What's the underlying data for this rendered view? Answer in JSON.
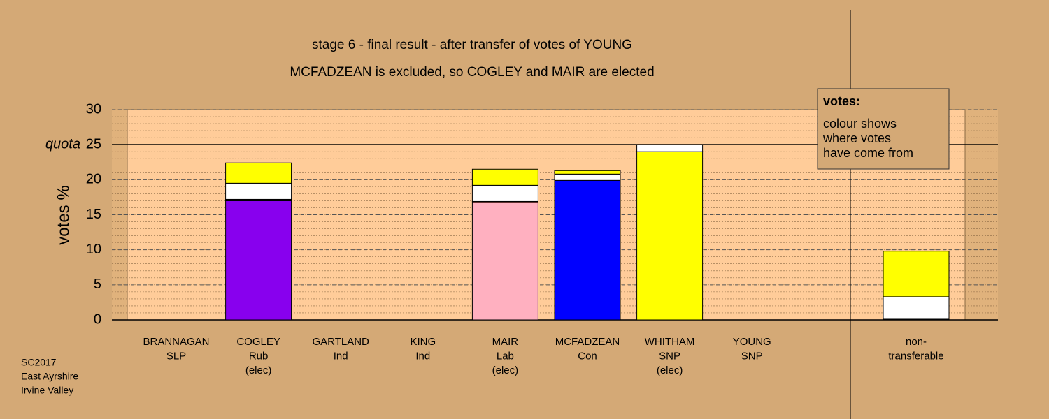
{
  "chart_data": {
    "type": "bar",
    "stacked": true,
    "title": "stage 6 - final result - after transfer of votes of YOUNG",
    "subtitle": "MCFADZEAN is excluded, so COGLEY and MAIR are elected",
    "ylabel": "votes %",
    "categories": [
      [
        "BRANNAGAN",
        "SLP"
      ],
      [
        "COGLEY",
        "Rub",
        "(elec)"
      ],
      [
        "GARTLAND",
        "Ind"
      ],
      [
        "KING",
        "Ind"
      ],
      [
        "MAIR",
        "Lab",
        "(elec)"
      ],
      [
        "MCFADZEAN",
        "Con"
      ],
      [
        "WHITHAM",
        "SNP",
        "(elec)"
      ],
      [
        "YOUNG",
        "SNP"
      ],
      [
        "non-",
        "transferable"
      ]
    ],
    "series": [
      {
        "color": "#8800ee",
        "values": [
          0,
          17.0,
          0,
          0,
          0,
          0,
          0,
          0,
          0
        ]
      },
      {
        "color": "#ffb0c0",
        "values": [
          0,
          0,
          0,
          0,
          16.7,
          0,
          0,
          0,
          0
        ]
      },
      {
        "color": "#0000ff",
        "values": [
          0,
          0,
          0,
          0,
          0,
          19.9,
          0,
          0,
          0
        ]
      },
      {
        "color": "#ffff00",
        "values": [
          0,
          0,
          0,
          0,
          0,
          0,
          24.0,
          0,
          0
        ]
      },
      {
        "color": "#663333",
        "values": [
          0,
          0.2,
          0,
          0,
          0.2,
          0,
          0,
          0,
          0.1
        ]
      },
      {
        "color": "#ffffff",
        "values": [
          0,
          2.3,
          0,
          0,
          2.3,
          0.9,
          1.0,
          0,
          3.2
        ]
      },
      {
        "color": "#ffff00",
        "values": [
          0,
          2.9,
          0,
          0,
          2.3,
          0.5,
          0,
          0,
          6.5
        ]
      }
    ],
    "ylim": [
      0,
      30
    ],
    "yticks": [
      0,
      5,
      10,
      15,
      20,
      25,
      30
    ],
    "minor_grid": 1,
    "grid": true,
    "quota": {
      "value": 25,
      "label": "quota"
    },
    "legend_box": {
      "title": "votes:",
      "lines": [
        "colour shows",
        "where votes",
        "have come from"
      ]
    },
    "footnote": [
      "SC2017",
      "East Ayrshire",
      "Irvine Valley"
    ]
  }
}
